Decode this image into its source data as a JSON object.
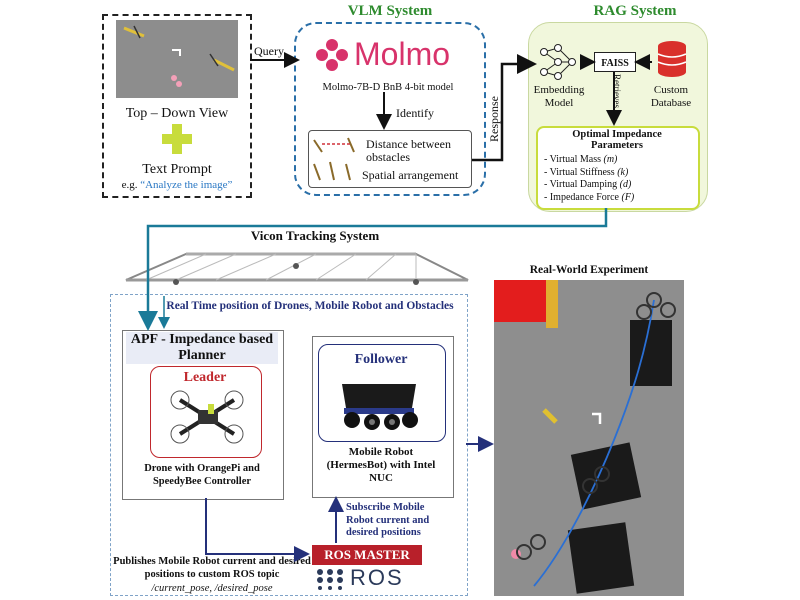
{
  "input": {
    "view_label": "Top – Down View",
    "plus_symbol": "+",
    "prompt_label": "Text Prompt",
    "prompt_example_prefix": "e.g. ",
    "prompt_example_quote": "“Analyze the image”"
  },
  "arrows": {
    "query": "Query",
    "response": "Response",
    "identify": "Identify",
    "retrieves": "Retrieves"
  },
  "vlm": {
    "title": "VLM System",
    "logo_text": "Molmo",
    "model": "Molmo-7B-D BnB 4-bit model",
    "distance": "Distance between obstacles",
    "spatial": "Spatial arrangement"
  },
  "rag": {
    "title": "RAG System",
    "faiss": "FAISS",
    "embedding": "Embedding Model",
    "database": "Custom Database",
    "params_title": "Optimal Impedance Parameters",
    "params": [
      {
        "label": "Virtual Mass",
        "sym": "(m)"
      },
      {
        "label": "Virtual Stiffness",
        "sym": "(k)"
      },
      {
        "label": "Virtual Damping",
        "sym": "(d)"
      },
      {
        "label": "Impedance Force",
        "sym": "(F)"
      }
    ]
  },
  "vicon": {
    "title": "Vicon Tracking System"
  },
  "lower": {
    "realtime": "Real Time position of Drones, Mobile Robot and Obstacles",
    "planner_title": "APF - Impedance based Planner",
    "leader": "Leader",
    "drone_caption": "Drone with OrangePi and SpeedyBee Controller",
    "follower": "Follower",
    "robot_caption": "Mobile Robot (HermesBot) with Intel NUC",
    "subscribe": "Subscribe Mobile Robot current and desired positions",
    "ros_master": "ROS MASTER",
    "ros_logo": "ROS",
    "publishes": "Publishes Mobile Robot current and desired positions to custom ROS topic",
    "topics": "/current_pose, /desired_pose"
  },
  "experiment": {
    "title": "Real-World Experiment"
  },
  "colors": {
    "vlm_title": "#2e8b2e",
    "molmo": "#d8336b",
    "prompt_link": "#2a78c4",
    "navy": "#24307a",
    "leader": "#c0282d",
    "plus": "#c8dc3c",
    "rag_bg": "#f1f7dc"
  }
}
